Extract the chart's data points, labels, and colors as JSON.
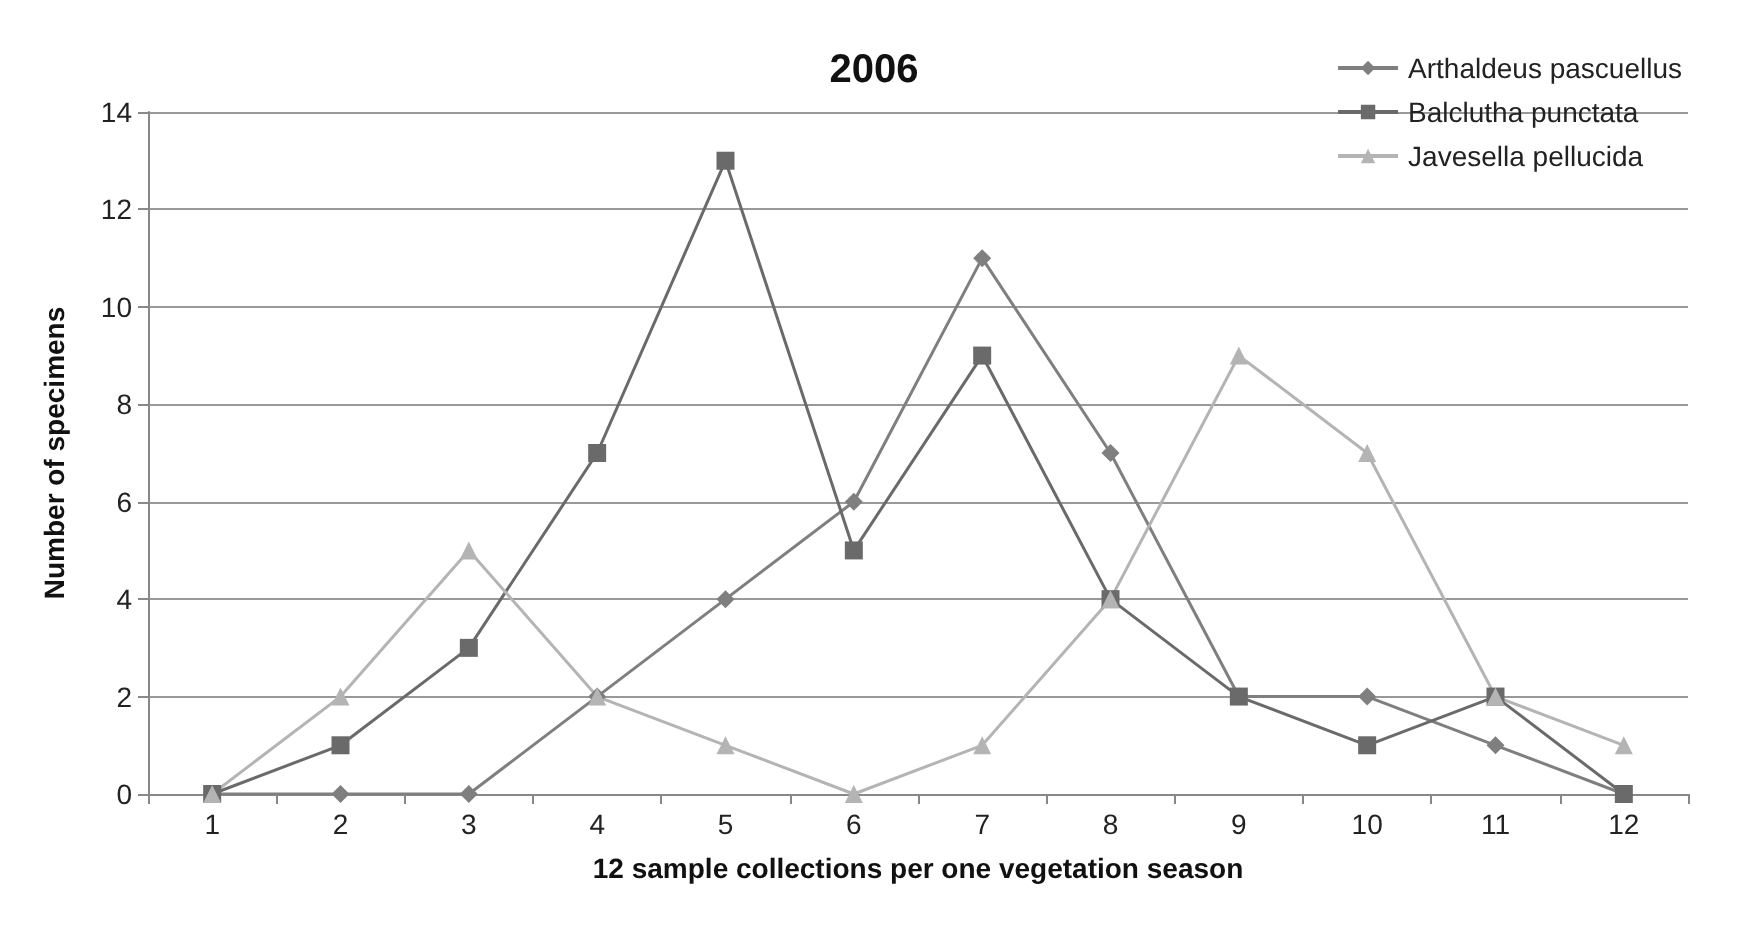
{
  "chart_data": {
    "type": "line",
    "title": "2006",
    "xlabel": "12 sample collections per one vegetation season",
    "ylabel": "Number of specimens",
    "categories": [
      "1",
      "2",
      "3",
      "4",
      "5",
      "6",
      "7",
      "8",
      "9",
      "10",
      "11",
      "12"
    ],
    "series": [
      {
        "name": "Arthaldeus pascuellus",
        "color": "#7f7f7f",
        "marker": "diamond",
        "values": [
          0,
          0,
          0,
          2,
          4,
          6,
          11,
          7,
          2,
          2,
          1,
          0
        ]
      },
      {
        "name": "Balclutha punctata",
        "color": "#6a6a6a",
        "marker": "square",
        "values": [
          0,
          1,
          3,
          7,
          13,
          5,
          9,
          4,
          2,
          1,
          2,
          0
        ]
      },
      {
        "name": "Javesella pellucida",
        "color": "#b4b4b4",
        "marker": "triangle",
        "values": [
          0,
          2,
          5,
          2,
          1,
          0,
          1,
          4,
          9,
          7,
          2,
          1
        ]
      }
    ],
    "ylim": [
      0,
      14
    ],
    "yticks": [
      0,
      2,
      4,
      6,
      8,
      10,
      12,
      14
    ],
    "grid": "y",
    "legend": "top right"
  }
}
